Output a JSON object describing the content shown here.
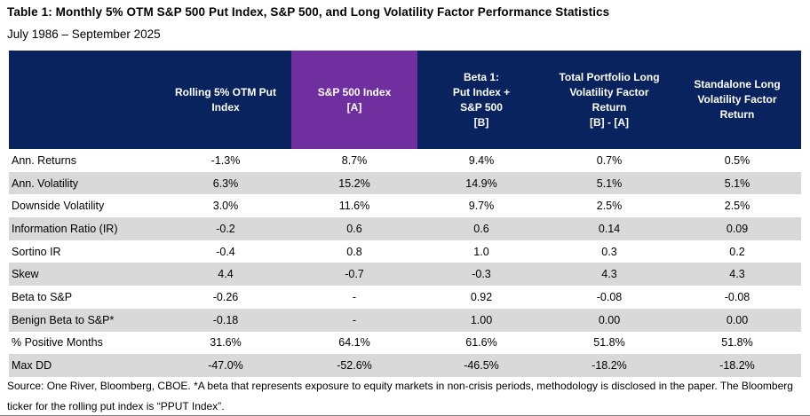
{
  "title": "Table 1: Monthly 5% OTM S&P 500 Put Index, S&P 500, and Long Volatility Factor Performance Statistics",
  "subtitle": "July 1986 – September 2025",
  "table": {
    "columns": [
      {
        "label": "",
        "highlight": false
      },
      {
        "label": "Rolling 5% OTM Put\nIndex",
        "highlight": false
      },
      {
        "label": "S&P 500 Index\n[A]",
        "highlight": true
      },
      {
        "label": "Beta 1:\nPut Index +\nS&P 500\n[B]",
        "highlight": false
      },
      {
        "label": "Total Portfolio Long\nVolatility Factor\nReturn\n[B] - [A]",
        "highlight": false
      },
      {
        "label": "Standalone Long\nVolatility Factor\nReturn",
        "highlight": false
      }
    ],
    "rows": [
      {
        "label": "Ann. Returns",
        "values": [
          "-1.3%",
          "8.7%",
          "9.4%",
          "0.7%",
          "0.5%"
        ]
      },
      {
        "label": "Ann. Volatility",
        "values": [
          "6.3%",
          "15.2%",
          "14.9%",
          "5.1%",
          "5.1%"
        ]
      },
      {
        "label": "Downside Volatility",
        "values": [
          "3.0%",
          "11.6%",
          "9.7%",
          "2.5%",
          "2.5%"
        ]
      },
      {
        "label": "Information Ratio (IR)",
        "values": [
          "-0.2",
          "0.6",
          "0.6",
          "0.14",
          "0.09"
        ]
      },
      {
        "label": "Sortino IR",
        "values": [
          "-0.4",
          "0.8",
          "1.0",
          "0.3",
          "0.2"
        ]
      },
      {
        "label": "Skew",
        "values": [
          "4.4",
          "-0.7",
          "-0.3",
          "4.3",
          "4.3"
        ]
      },
      {
        "label": "Beta to S&P",
        "values": [
          "-0.26",
          "-",
          "0.92",
          "-0.08",
          "-0.08"
        ]
      },
      {
        "label": "Benign Beta to S&P*",
        "values": [
          "-0.18",
          "-",
          "1.00",
          "0.00",
          "0.00"
        ]
      },
      {
        "label": "% Positive Months",
        "values": [
          "31.6%",
          "64.1%",
          "61.6%",
          "51.8%",
          "51.8%"
        ]
      },
      {
        "label": "Max DD",
        "values": [
          "-47.0%",
          "-52.6%",
          "-46.5%",
          "-18.2%",
          "-18.2%"
        ]
      }
    ]
  },
  "footnote": "Source: One River, Bloomberg, CBOE. *A beta that represents exposure to equity markets in non-crisis periods, methodology is disclosed in the paper. The Bloomberg ticker for the rolling put index is “PPUT Index”.",
  "colors": {
    "header_bg": "#08235e",
    "highlight_bg": "#6f2f9f",
    "row_alt_bg": "#d9d9d9",
    "header_text": "#ffffff",
    "body_text": "#000000",
    "bottom_rule": "#7f7f7f"
  }
}
